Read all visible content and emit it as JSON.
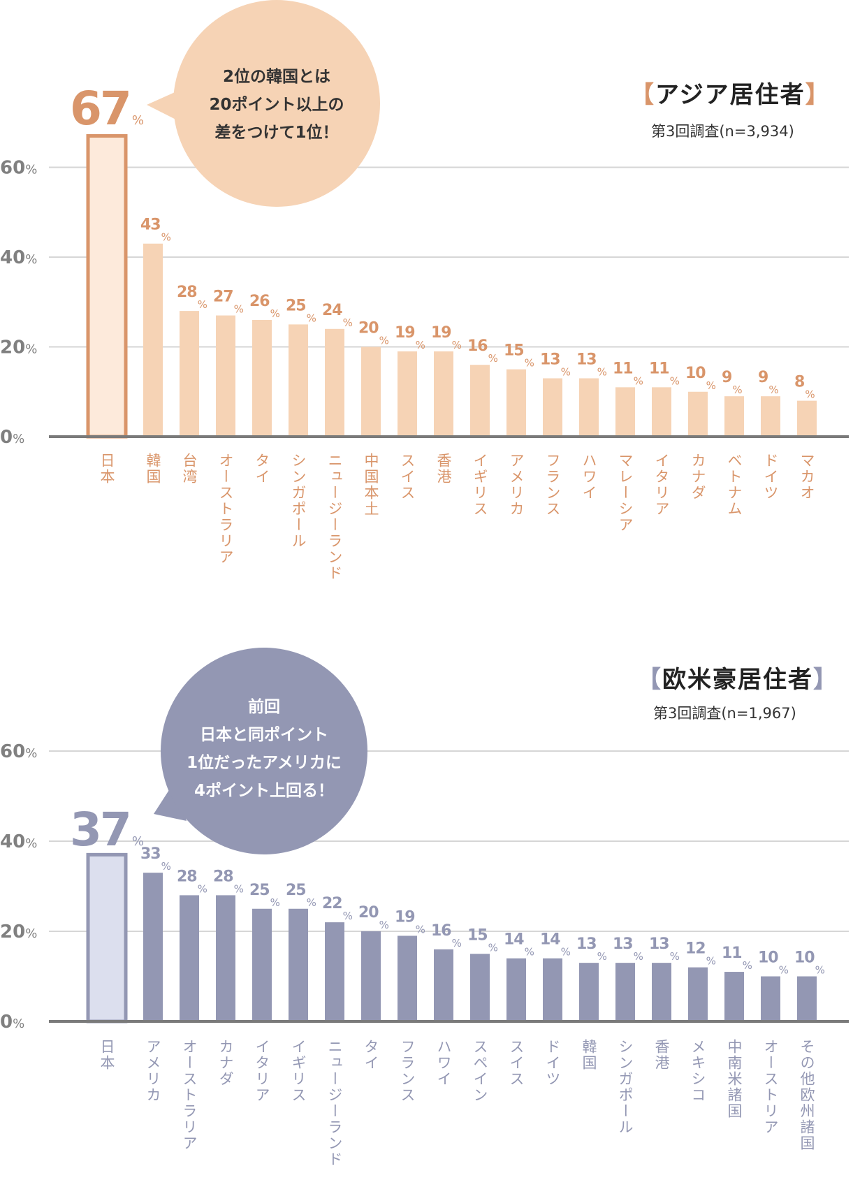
{
  "chart_data": [
    {
      "type": "bar",
      "title": "アジア居住者",
      "subtitle": "第3回調査(n=3,934)",
      "callout": [
        "2位の韓国とは",
        "20ポイント以上の",
        "差をつけて1位！"
      ],
      "yticks": [
        "0%",
        "20%",
        "40%",
        "60%"
      ],
      "ylim": [
        0,
        60
      ],
      "grid": true,
      "unit": "%",
      "categories": [
        "日本",
        "韓国",
        "台湾",
        "オーストラリア",
        "タイ",
        "シンガポール",
        "ニュージーランド",
        "中国本土",
        "スイス",
        "香港",
        "イギリス",
        "アメリカ",
        "フランス",
        "ハワイ",
        "マレーシア",
        "イタリア",
        "カナダ",
        "ベトナム",
        "ドイツ",
        "マカオ"
      ],
      "values": [
        67,
        43,
        28,
        27,
        26,
        25,
        24,
        20,
        19,
        19,
        16,
        15,
        13,
        13,
        11,
        11,
        10,
        9,
        9,
        8
      ],
      "colors": {
        "accent": "#d9956a",
        "bar": "#f6d3b5",
        "highlight_fill": "#fdeadb",
        "bubble": "#f6d3b5",
        "bubble_text": "#333333",
        "bracket": "#d9956a"
      }
    },
    {
      "type": "bar",
      "title": "欧米豪居住者",
      "subtitle": "第3回調査(n=1,967)",
      "callout": [
        "前回",
        "日本と同ポイント",
        "1位だったアメリカに",
        "4ポイント上回る！"
      ],
      "yticks": [
        "0%",
        "20%",
        "40%",
        "60%"
      ],
      "ylim": [
        0,
        60
      ],
      "grid": true,
      "unit": "%",
      "categories": [
        "日本",
        "アメリカ",
        "オーストラリア",
        "カナダ",
        "イタリア",
        "イギリス",
        "ニュージーランド",
        "タイ",
        "フランス",
        "ハワイ",
        "スペイン",
        "スイス",
        "ドイツ",
        "韓国",
        "シンガポール",
        "香港",
        "メキシコ",
        "中南米諸国",
        "オーストリア",
        "その他欧州諸国"
      ],
      "values": [
        37,
        33,
        28,
        28,
        25,
        25,
        22,
        20,
        19,
        16,
        15,
        14,
        14,
        13,
        13,
        13,
        12,
        11,
        10,
        10
      ],
      "colors": {
        "accent": "#9397b3",
        "bar": "#9397b3",
        "highlight_fill": "#dcdfee",
        "bubble": "#9397b3",
        "bubble_text": "#ffffff",
        "bracket": "#9397b3"
      }
    }
  ]
}
